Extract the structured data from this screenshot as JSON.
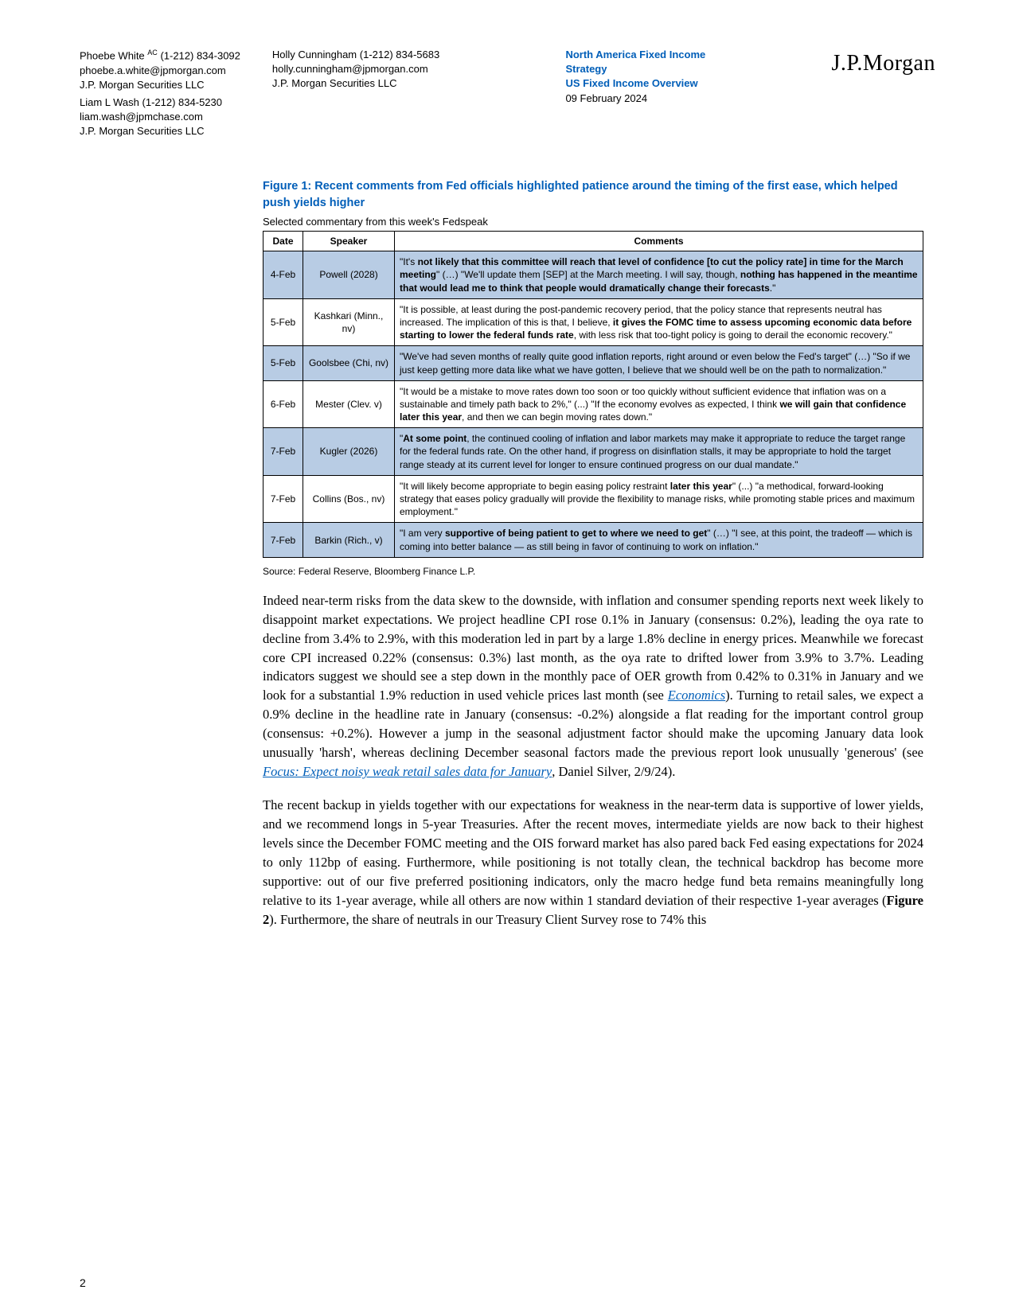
{
  "header": {
    "authors": [
      {
        "name": "Phoebe White",
        "sup": "AC",
        "phone": "(1-212) 834-3092",
        "email": "phoebe.a.white@jpmorgan.com",
        "firm": "J.P. Morgan Securities LLC"
      },
      {
        "name": "Liam L Wash",
        "sup": "",
        "phone": "(1-212) 834-5230",
        "email": "liam.wash@jpmchase.com",
        "firm": "J.P. Morgan Securities LLC"
      },
      {
        "name": "Holly Cunningham",
        "sup": "",
        "phone": "(1-212) 834-5683",
        "email": "holly.cunningham@jpmorgan.com",
        "firm": "J.P. Morgan Securities LLC"
      }
    ],
    "doc_title_line1": "North America Fixed Income",
    "doc_title_line2": "Strategy",
    "doc_subtitle": "US Fixed Income Overview",
    "doc_date": "09 February 2024",
    "logo": "J.P.Morgan"
  },
  "figure": {
    "title": "Figure 1: Recent comments from Fed officials highlighted patience around the timing of the first ease, which helped push yields higher",
    "subtitle": "Selected commentary from this week's Fedspeak",
    "columns": [
      "Date",
      "Speaker",
      "Comments"
    ],
    "rows": [
      {
        "shaded": true,
        "date": "4-Feb",
        "speaker": "Powell (2028)",
        "comment": "\"It's <b>not likely that this committee will reach that level of confidence [to cut the policy rate] in time for the March meeting</b>\"  (…) \"We'll update them [SEP] at the March meeting. I will say, though, <b>nothing has happened in the meantime that would lead me to think that people would dramatically change their forecasts</b>.\""
      },
      {
        "shaded": false,
        "date": "5-Feb",
        "speaker": "Kashkari (Minn., nv)",
        "comment": "\"It is possible, at least during the post-pandemic recovery period, that the policy stance that represents neutral has increased. The implication of this is that, I believe, <b>it gives the FOMC time to assess upcoming economic data before starting to lower the federal funds rate</b>, with less risk that too-tight policy is going to derail the economic recovery.\""
      },
      {
        "shaded": true,
        "date": "5-Feb",
        "speaker": "Goolsbee (Chi, nv)",
        "comment": "\"We've had seven months of really quite good inflation reports, right around or even below the Fed's target\" (…) \"So if we just keep getting more data like what we have gotten, I believe that we should well be on the path to normalization.\""
      },
      {
        "shaded": false,
        "date": "6-Feb",
        "speaker": "Mester (Clev. v)",
        "comment": "\"It would be a mistake to move rates down too soon or too quickly without sufficient evidence that inflation was on a sustainable and timely path back to 2%,\" (...) \"If the economy evolves as expected, I think <b>we will gain that confidence later this year</b>, and then we can begin moving rates down.\""
      },
      {
        "shaded": true,
        "date": "7-Feb",
        "speaker": "Kugler (2026)",
        "comment": "\"<b>At some point</b>, the continued cooling of inflation and labor markets may make it appropriate to reduce the target range for the federal funds rate. On the other hand, if progress on disinflation stalls, it may be appropriate to hold the target range steady at its current level for longer to ensure continued progress on our dual mandate.\""
      },
      {
        "shaded": false,
        "date": "7-Feb",
        "speaker": "Collins (Bos., nv)",
        "comment": "\"It will likely become appropriate to begin easing policy restraint <b>later this year</b>\" (...) \"a methodical, forward-looking strategy that eases policy gradually will provide the flexibility to manage risks, while promoting stable prices and maximum employment.\""
      },
      {
        "shaded": true,
        "date": "7-Feb",
        "speaker": "Barkin (Rich., v)",
        "comment": "\"I am very <b>supportive of being patient to get to where we need to get</b>\" (…) \"I see, at this point, the tradeoff — which is coming into better balance — as still being in favor of continuing to work on inflation.\""
      }
    ],
    "source": "Source: Federal Reserve, Bloomberg Finance L.P."
  },
  "paragraphs": [
    "Indeed near-term risks from the data skew to the downside, with inflation and consumer spending reports next week likely to disappoint market expectations. We project headline CPI rose 0.1% in January (consensus: 0.2%), leading the oya rate to decline from 3.4% to 2.9%, with this moderation led in part by a large 1.8% decline in energy prices. Meanwhile we forecast core CPI increased 0.22% (consensus: 0.3%) last month, as the oya rate to drifted lower from 3.9% to 3.7%. Leading indicators suggest we should see a step down in the monthly pace of OER growth from 0.42% to 0.31% in January and we look for a substantial 1.9% reduction in used vehicle prices last month (see <a href='#'>Economics</a>). Turning to retail sales, we expect a 0.9% decline in the headline rate in January (consensus: -0.2%) alongside a flat reading for the important control group (consensus: +0.2%). However a jump in the seasonal adjustment factor should make the upcoming January data look unusually 'harsh', whereas declining December seasonal factors made the previous report look unusually 'generous' (see <a href='#'>Focus: Expect noisy weak retail sales data for January</a>, Daniel Silver, 2/9/24).",
    "The recent backup in yields together with our expectations for weakness in the near-term data is supportive of lower yields, and we recommend longs in 5-year Treasuries. After the recent moves, intermediate yields are now back to their highest levels since the December FOMC meeting and the OIS forward market has also pared back Fed easing expectations for 2024 to only 112bp of easing. Furthermore, while positioning is not totally clean, the technical backdrop has become more supportive: out of our five preferred positioning indicators, only the macro hedge fund beta remains meaningfully long relative to its 1-year average, while all others are now within 1 standard deviation of their respective 1-year averages (<b>Figure 2</b>). Furthermore, the share of neutrals in our Treasury Client Survey rose to 74% this"
  ],
  "page_number": "2"
}
